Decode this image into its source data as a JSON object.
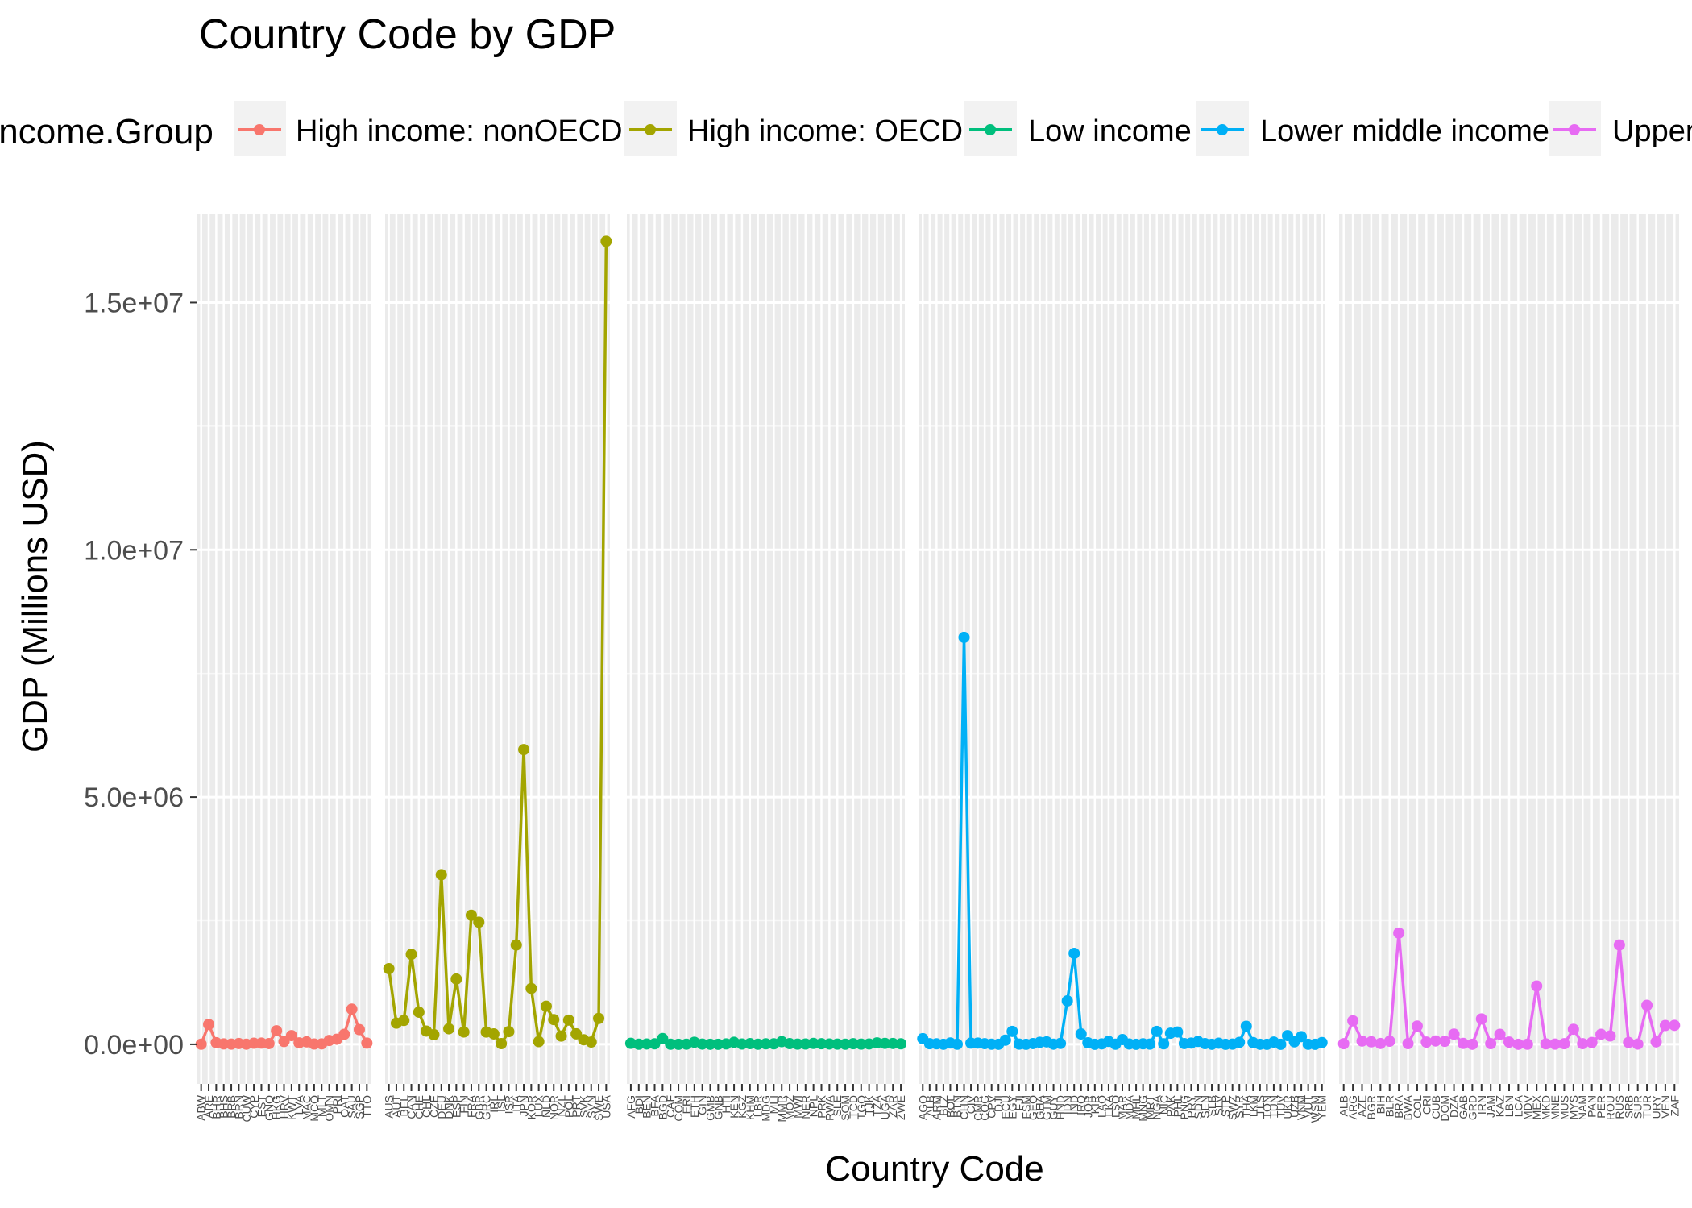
{
  "chart_data": {
    "type": "line",
    "title": "Country Code by GDP",
    "xlabel": "Country Code",
    "ylabel": "GDP (Millions USD)",
    "ylim": [
      -800000,
      16800000
    ],
    "yticks": [
      0,
      5000000,
      10000000,
      15000000
    ],
    "ytick_labels": [
      "0.0e+00",
      "5.0e+06",
      "1.0e+07",
      "1.5e+07"
    ],
    "grid": true,
    "background": "#ebebeb",
    "legend": {
      "title": "Income.Group",
      "position": "top",
      "entries": [
        {
          "name": "High income: nonOECD",
          "color": "#F8766D"
        },
        {
          "name": "High income: OECD",
          "color": "#A3A500"
        },
        {
          "name": "Low income",
          "color": "#00BF7D"
        },
        {
          "name": "Lower middle income",
          "color": "#00B0F6"
        },
        {
          "name": "Upper middle income",
          "color": "#E76BF3"
        }
      ]
    },
    "series": [
      {
        "name": "High income: nonOECD",
        "color": "#F8766D",
        "categories": [
          "ABW",
          "ARE",
          "BHR",
          "BHS",
          "BRB",
          "BRN",
          "CUW",
          "CYP",
          "EST",
          "GNQ",
          "HKG",
          "HRV",
          "KWT",
          "LVA",
          "MAC",
          "MCO",
          "MLT",
          "OMN",
          "PRI",
          "QAT",
          "SAU",
          "SGP",
          "TTO"
        ],
        "values": [
          2500,
          402000,
          33000,
          8400,
          4400,
          16000,
          3100,
          22000,
          24000,
          15600,
          274000,
          57000,
          176000,
          30000,
          51000,
          6000,
          9600,
          78000,
          103000,
          203000,
          711000,
          298000,
          24600
        ]
      },
      {
        "name": "High income: OECD",
        "color": "#A3A500",
        "categories": [
          "AUS",
          "AUT",
          "BEL",
          "CAN",
          "CHE",
          "CHL",
          "CZE",
          "DEU",
          "DNK",
          "ESP",
          "FIN",
          "FRA",
          "GBR",
          "GRC",
          "IRL",
          "ISL",
          "ISR",
          "ITA",
          "JPN",
          "KOR",
          "LUX",
          "NLD",
          "NOR",
          "NZL",
          "POL",
          "PRT",
          "SVK",
          "SVN",
          "SWE",
          "USA"
        ],
        "values": [
          1530000,
          428000,
          483000,
          1820000,
          651000,
          268000,
          196000,
          3430000,
          315000,
          1320000,
          250000,
          2610000,
          2470000,
          249000,
          211000,
          14000,
          258000,
          2010000,
          5960000,
          1130000,
          55000,
          771000,
          500000,
          167000,
          490000,
          212000,
          92000,
          46000,
          524000,
          16240000
        ]
      },
      {
        "name": "Low income",
        "color": "#00BF7D",
        "categories": [
          "AFG",
          "BDI",
          "BEN",
          "BFA",
          "BGD",
          "CAF",
          "COM",
          "ERI",
          "ETH",
          "GIN",
          "GMB",
          "GNB",
          "HTI",
          "KEN",
          "KGZ",
          "KHM",
          "LBR",
          "MDG",
          "MLI",
          "MMR",
          "MOZ",
          "MWI",
          "NER",
          "NPL",
          "PRK",
          "RWA",
          "SLE",
          "SOM",
          "TCD",
          "TGO",
          "TJK",
          "TZA",
          "UGA",
          "ZAR",
          "ZWE"
        ],
        "values": [
          20000,
          2500,
          7600,
          10000,
          116000,
          2200,
          600,
          3100,
          41600,
          5600,
          900,
          800,
          7800,
          40700,
          6500,
          14000,
          1700,
          9900,
          10300,
          54000,
          14200,
          4300,
          6800,
          18900,
          12000,
          7100,
          3800,
          2000,
          12900,
          3800,
          6900,
          28200,
          19900,
          17200,
          9800
        ]
      },
      {
        "name": "Lower middle income",
        "color": "#00B0F6",
        "categories": [
          "AGO",
          "ALB",
          "ARM",
          "BLZ",
          "BOL",
          "BTN",
          "CHN",
          "CIV",
          "CMR",
          "COG",
          "CPV",
          "DJI",
          "ECU",
          "EGY",
          "FJI",
          "FSM",
          "GEO",
          "GHA",
          "GTM",
          "GUY",
          "HND",
          "IDN",
          "IND",
          "IRQ",
          "JOR",
          "KIR",
          "LAO",
          "LKA",
          "LSO",
          "MAR",
          "MDA",
          "MHL",
          "MNG",
          "MRT",
          "NGA",
          "NIC",
          "PAK",
          "PHL",
          "PNG",
          "PRY",
          "SDN",
          "SEN",
          "SLB",
          "SLV",
          "STP",
          "SWZ",
          "SYR",
          "THA",
          "TKM",
          "TLS",
          "TON",
          "TUN",
          "TUV",
          "UKR",
          "UZB",
          "VNM",
          "VUT",
          "WSM",
          "YEM"
        ],
        "values": [
          114000,
          12600,
          10000,
          1500,
          27000,
          1800,
          8230000,
          24700,
          25300,
          13700,
          1800,
          1400,
          84000,
          262000,
          3900,
          300,
          15700,
          40700,
          50200,
          2800,
          18600,
          878000,
          1840000,
          210000,
          31000,
          200,
          9400,
          59400,
          2400,
          96000,
          7300,
          200,
          10300,
          4200,
          262000,
          10500,
          225000,
          250000,
          15700,
          25500,
          58800,
          14000,
          1000,
          23800,
          300,
          3700,
          40000,
          366000,
          35200,
          1300,
          500,
          45000,
          40,
          176000,
          51100,
          156000,
          800,
          700,
          35700
        ]
      },
      {
        "name": "Upper middle income",
        "color": "#E76BF3",
        "categories": [
          "ALB",
          "ARG",
          "AZE",
          "BGR",
          "BIH",
          "BLR",
          "BRA",
          "BWA",
          "COL",
          "CRI",
          "CUB",
          "DOM",
          "DZA",
          "GAB",
          "GRD",
          "IRN",
          "JAM",
          "KAZ",
          "LBN",
          "LCA",
          "MDV",
          "MEX",
          "MKD",
          "MNE",
          "MUS",
          "MYS",
          "NAM",
          "PAN",
          "PER",
          "ROU",
          "RUS",
          "SRB",
          "SUR",
          "TUR",
          "URY",
          "VEN",
          "ZAF"
        ],
        "values": [
          12600,
          475000,
          66600,
          51000,
          17500,
          63300,
          2250000,
          14500,
          370000,
          45100,
          68200,
          60600,
          206000,
          18400,
          800,
          514000,
          14300,
          203000,
          44400,
          1300,
          2300,
          1180000,
          9600,
          4400,
          11900,
          305000,
          13100,
          36300,
          203000,
          169000,
          2010000,
          37500,
          5300,
          789000,
          50000,
          381000,
          384000
        ]
      }
    ]
  }
}
